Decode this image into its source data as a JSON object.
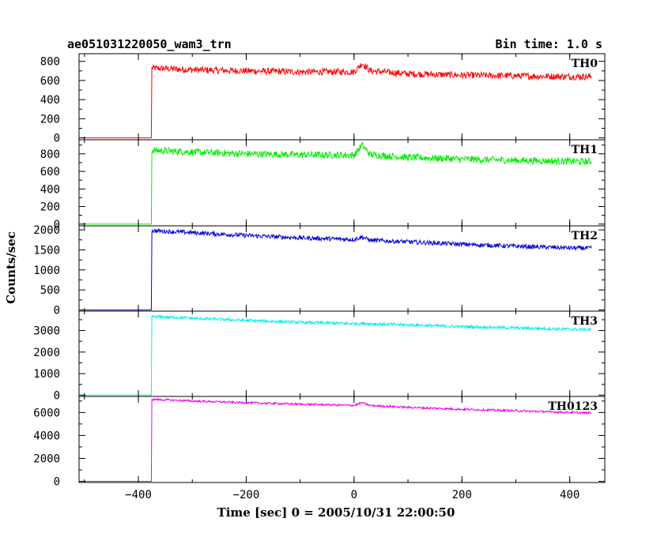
{
  "header": {
    "title": "ae051031220050_wam3_trn",
    "bin_time": "Bin time: 1.0 s"
  },
  "chart_data": {
    "type": "line",
    "xlabel": "Time [sec] 0 = 2005/10/31 22:00:50",
    "ylabel": "Counts/sec",
    "xlim": [
      -510,
      465
    ],
    "x_ticks": [
      -400,
      -200,
      0,
      200,
      400
    ],
    "x_tick_labels": [
      "−400",
      "−200",
      "0",
      "200",
      "400"
    ],
    "panels": [
      {
        "name": "TH0",
        "label": "TH0",
        "color": "#ff0000",
        "ylim": [
          -20,
          880
        ],
        "y_ticks": [
          0,
          200,
          400,
          600,
          800
        ],
        "y_tick_labels": [
          "0",
          "200",
          "400",
          "600",
          "800"
        ],
        "pre_onset_value": 0,
        "onset_time": -375,
        "points": [
          [
            -375,
            730
          ],
          [
            -300,
            712
          ],
          [
            -200,
            700
          ],
          [
            -100,
            690
          ],
          [
            0,
            690
          ],
          [
            15,
            780
          ],
          [
            30,
            700
          ],
          [
            100,
            670
          ],
          [
            200,
            655
          ],
          [
            300,
            648
          ],
          [
            400,
            640
          ],
          [
            440,
            640
          ]
        ],
        "noise": 35
      },
      {
        "name": "TH1",
        "label": "TH1",
        "color": "#00ee00",
        "ylim": [
          -20,
          960
        ],
        "y_ticks": [
          0,
          200,
          400,
          600,
          800
        ],
        "y_tick_labels": [
          "0",
          "200",
          "400",
          "600",
          "800"
        ],
        "pre_onset_value": 0,
        "onset_time": -375,
        "points": [
          [
            -375,
            840
          ],
          [
            -300,
            820
          ],
          [
            -200,
            800
          ],
          [
            -100,
            790
          ],
          [
            0,
            785
          ],
          [
            15,
            900
          ],
          [
            30,
            790
          ],
          [
            100,
            760
          ],
          [
            200,
            740
          ],
          [
            300,
            725
          ],
          [
            400,
            715
          ],
          [
            440,
            710
          ]
        ],
        "noise": 40
      },
      {
        "name": "TH2",
        "label": "TH2",
        "color": "#0000dd",
        "ylim": [
          -30,
          2100
        ],
        "y_ticks": [
          0,
          500,
          1000,
          1500,
          2000
        ],
        "y_tick_labels": [
          "0",
          "500",
          "1000",
          "1500",
          "2000"
        ],
        "pre_onset_value": 0,
        "onset_time": -375,
        "points": [
          [
            -375,
            1980
          ],
          [
            -300,
            1930
          ],
          [
            -200,
            1860
          ],
          [
            -100,
            1800
          ],
          [
            0,
            1760
          ],
          [
            15,
            1820
          ],
          [
            30,
            1740
          ],
          [
            100,
            1700
          ],
          [
            200,
            1640
          ],
          [
            300,
            1590
          ],
          [
            400,
            1550
          ],
          [
            440,
            1540
          ]
        ],
        "noise": 55
      },
      {
        "name": "TH3",
        "label": "TH3",
        "color": "#00eeee",
        "ylim": [
          -60,
          3900
        ],
        "y_ticks": [
          0,
          1000,
          2000,
          3000
        ],
        "y_tick_labels": [
          "0",
          "1000",
          "2000",
          "3000"
        ],
        "pre_onset_value": 0,
        "onset_time": -375,
        "points": [
          [
            -375,
            3650
          ],
          [
            -300,
            3570
          ],
          [
            -200,
            3470
          ],
          [
            -100,
            3380
          ],
          [
            0,
            3320
          ],
          [
            15,
            3330
          ],
          [
            100,
            3260
          ],
          [
            200,
            3180
          ],
          [
            300,
            3120
          ],
          [
            400,
            3060
          ],
          [
            440,
            3040
          ]
        ],
        "noise": 70
      },
      {
        "name": "TH0123",
        "label": "TH0123",
        "color": "#ee00ee",
        "ylim": [
          -100,
          7400
        ],
        "y_ticks": [
          0,
          2000,
          4000,
          6000
        ],
        "y_tick_labels": [
          "0",
          "2000",
          "4000",
          "6000"
        ],
        "pre_onset_value": 0,
        "onset_time": -375,
        "points": [
          [
            -375,
            7150
          ],
          [
            -300,
            7000
          ],
          [
            -200,
            6850
          ],
          [
            -100,
            6720
          ],
          [
            0,
            6620
          ],
          [
            15,
            6850
          ],
          [
            30,
            6600
          ],
          [
            100,
            6450
          ],
          [
            200,
            6280
          ],
          [
            300,
            6150
          ],
          [
            400,
            6000
          ],
          [
            440,
            5950
          ]
        ],
        "noise": 90
      }
    ]
  }
}
